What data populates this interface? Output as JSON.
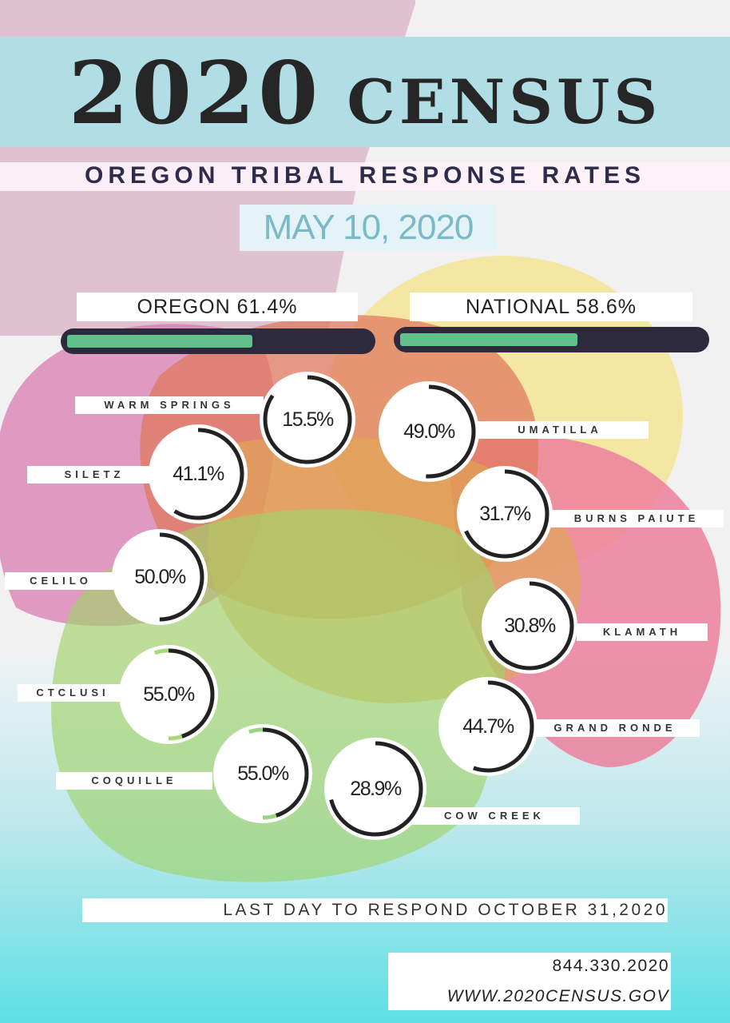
{
  "header": {
    "title_year": "2020",
    "title_word": "CENSUS",
    "subtitle": "OREGON TRIBAL RESPONSE RATES",
    "date": "MAY 10, 2020"
  },
  "summary": {
    "oregon": {
      "label": "OREGON 61.4%",
      "fraction": 0.614
    },
    "national": {
      "label": "NATIONAL 58.6%",
      "fraction": 0.586
    }
  },
  "tribes": [
    {
      "name": "WARM SPRINGS",
      "rate": "15.5%",
      "value": 15.5
    },
    {
      "name": "SILETZ",
      "rate": "41.1%",
      "value": 41.1
    },
    {
      "name": "CELILO",
      "rate": "50.0%",
      "value": 50.0
    },
    {
      "name": "CTCLUSI",
      "rate": "55.0%",
      "value": 55.0
    },
    {
      "name": "COQUILLE",
      "rate": "55.0%",
      "value": 55.0
    },
    {
      "name": "COW CREEK",
      "rate": "28.9%",
      "value": 28.9
    },
    {
      "name": "GRAND RONDE",
      "rate": "44.7%",
      "value": 44.7
    },
    {
      "name": "KLAMATH",
      "rate": "30.8%",
      "value": 30.8
    },
    {
      "name": "BURNS PAIUTE",
      "rate": "31.7%",
      "value": 31.7
    },
    {
      "name": "UMATILLA",
      "rate": "49.0%",
      "value": 49.0
    }
  ],
  "footer": {
    "deadline": "LAST DAY TO RESPOND OCTOBER 31,2020",
    "phone": "844.330.2020",
    "website": "WWW.2020CENSUS.GOV"
  },
  "colors": {
    "banner": "#b1dde4",
    "bar_fill": "#5fc08a",
    "bar_track": "#2c2a3c",
    "ring_remaining": "#222222",
    "title_text": "#262626",
    "date_text": "#7ab9c6"
  }
}
